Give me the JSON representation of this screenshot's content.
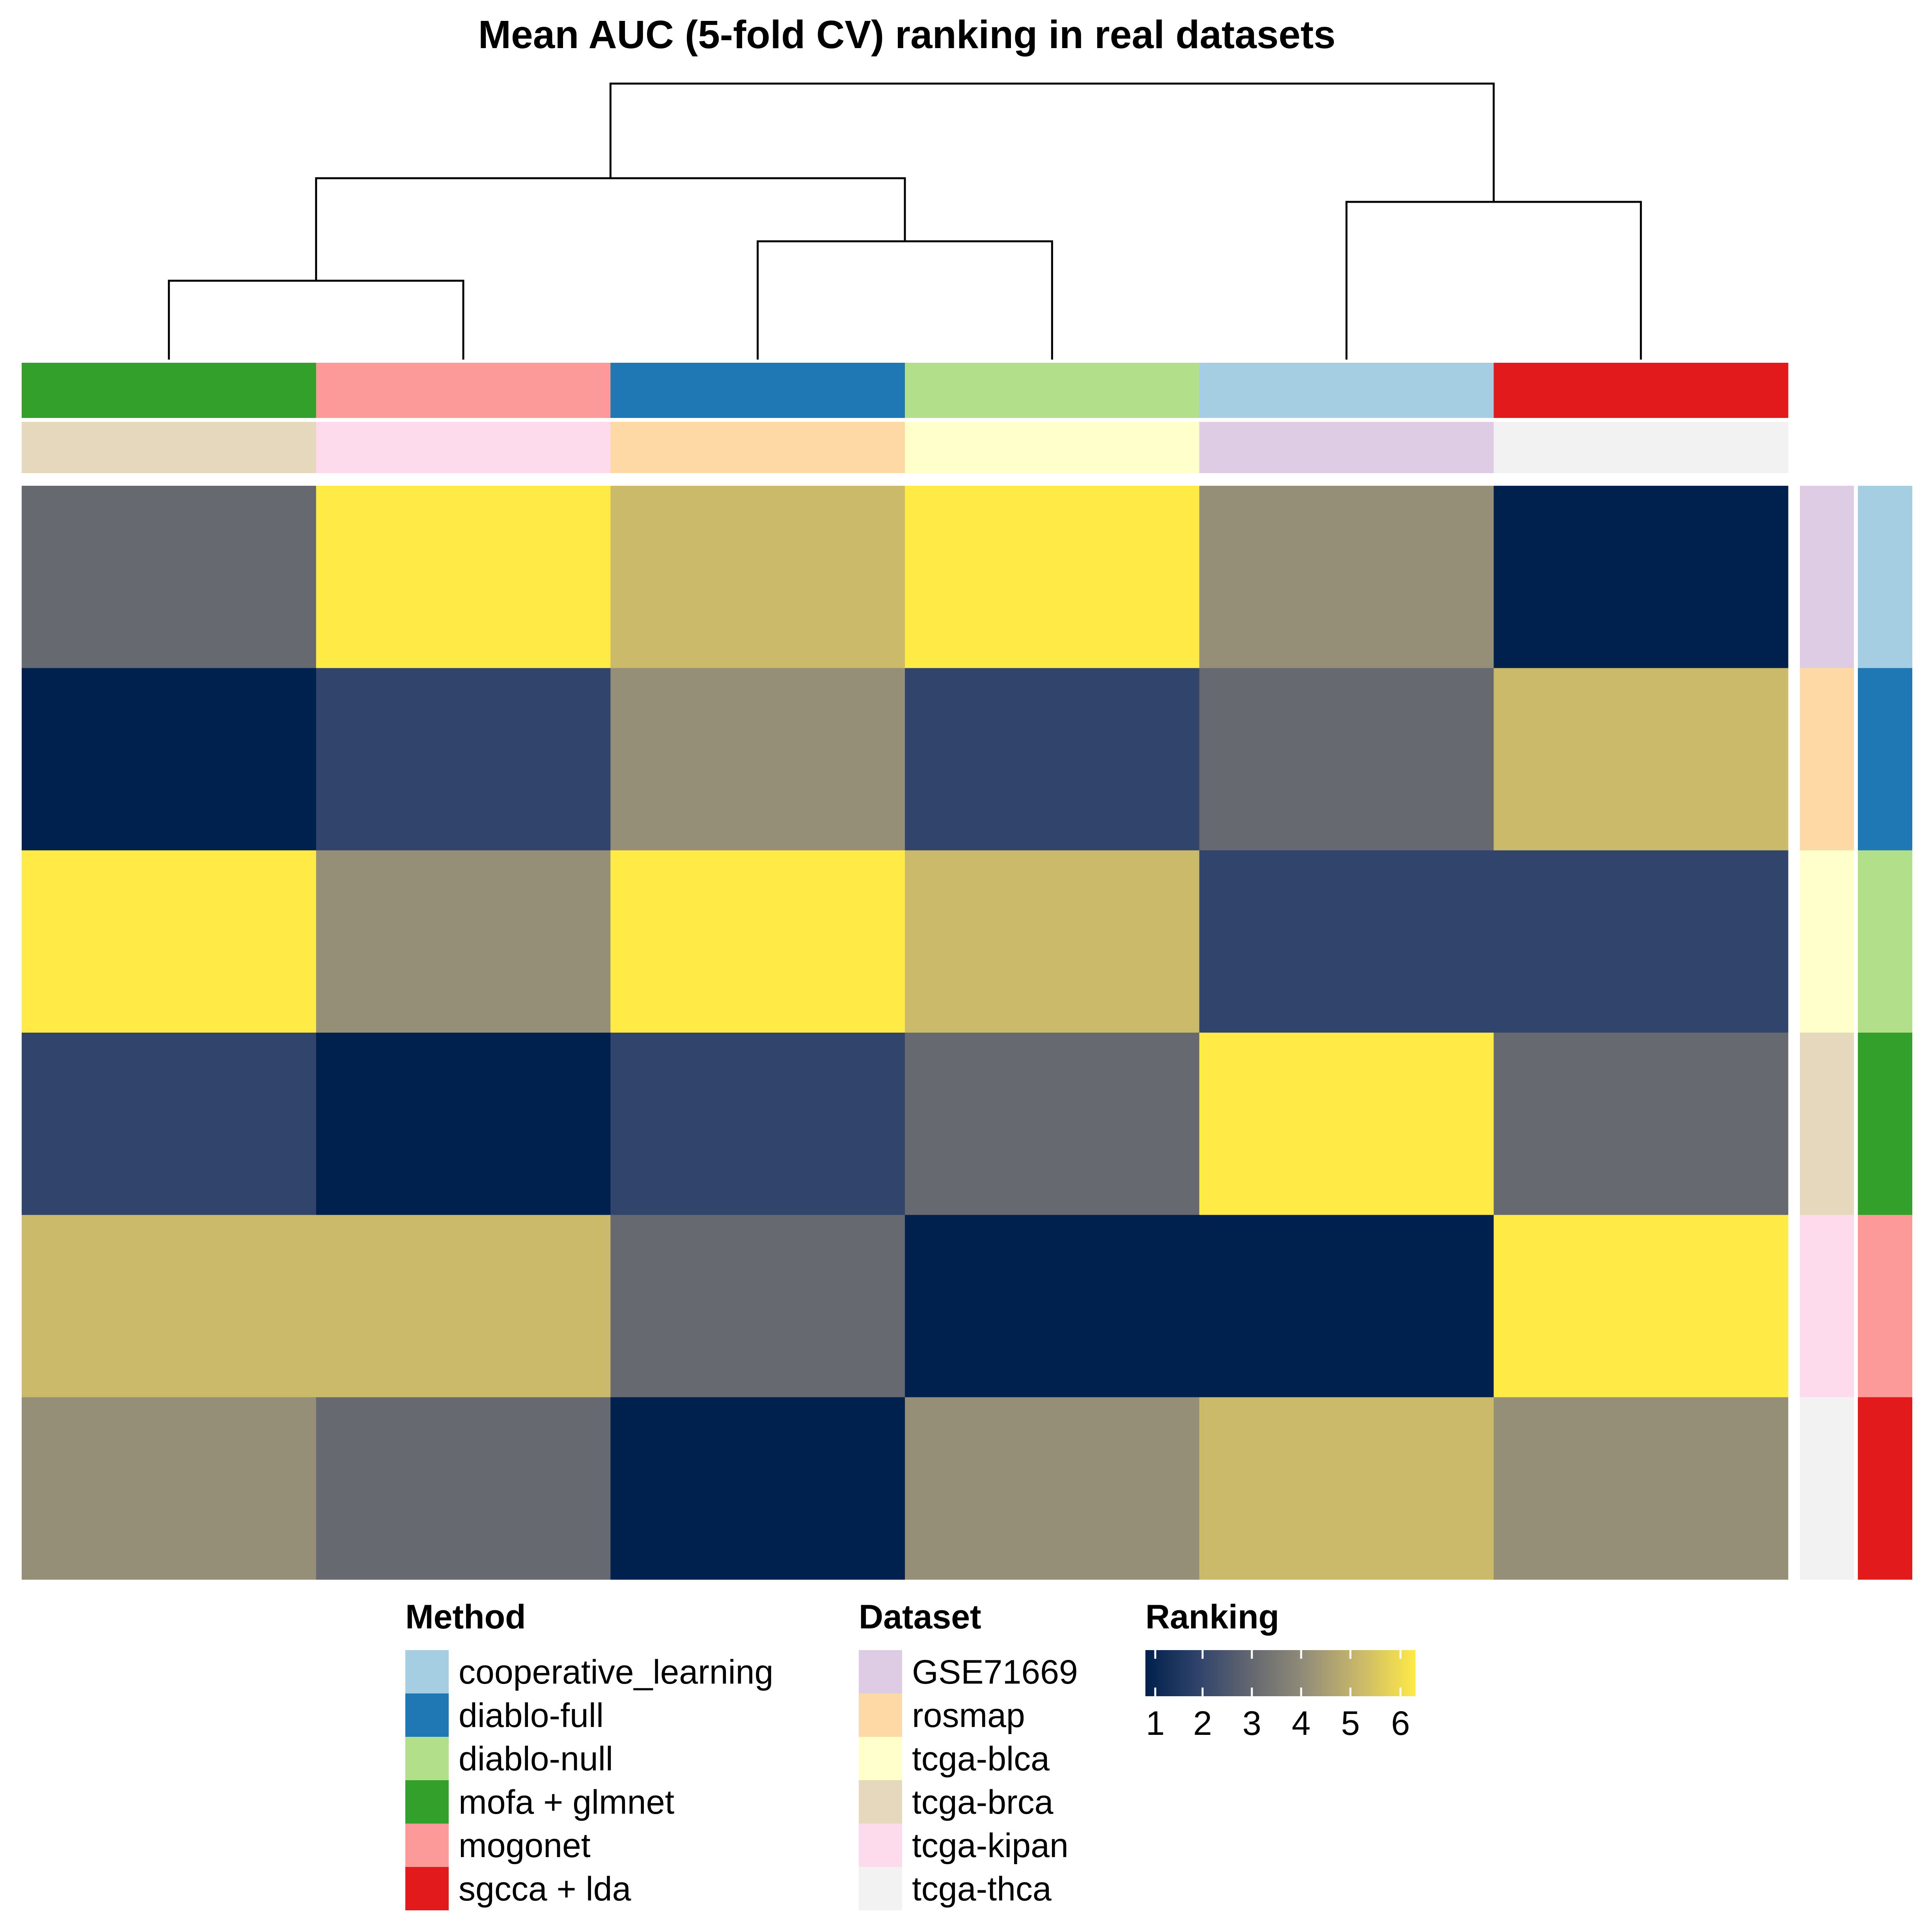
{
  "chart_data": {
    "type": "heatmap",
    "title": "Mean AUC (5-fold CV) ranking in real datasets",
    "columns": [
      {
        "dataset": "tcga-brca",
        "method": "mofa + glmnet"
      },
      {
        "dataset": "tcga-kipan",
        "method": "mogonet"
      },
      {
        "dataset": "rosmap",
        "method": "diablo-full"
      },
      {
        "dataset": "tcga-blca",
        "method": "diablo-null"
      },
      {
        "dataset": "GSE71669",
        "method": "cooperative_learning"
      },
      {
        "dataset": "tcga-thca",
        "method": "sgcca + lda"
      }
    ],
    "rows": [
      {
        "dataset": "GSE71669",
        "method": "cooperative_learning"
      },
      {
        "dataset": "rosmap",
        "method": "diablo-full"
      },
      {
        "dataset": "tcga-blca",
        "method": "diablo-null"
      },
      {
        "dataset": "tcga-brca",
        "method": "mofa + glmnet"
      },
      {
        "dataset": "tcga-kipan",
        "method": "mogonet"
      },
      {
        "dataset": "tcga-thca",
        "method": "sgcca + lda"
      }
    ],
    "values": [
      [
        3,
        6,
        5,
        6,
        4,
        1
      ],
      [
        1,
        2,
        4,
        2,
        3,
        5
      ],
      [
        6,
        4,
        6,
        5,
        2,
        2
      ],
      [
        2,
        1,
        2,
        3,
        6,
        3
      ],
      [
        5,
        5,
        3,
        1,
        1,
        6
      ],
      [
        4,
        3,
        1,
        4,
        5,
        4
      ]
    ],
    "colorscale": [
      "#00204D",
      "#31446B",
      "#666970",
      "#958F78",
      "#CBBA69",
      "#FFEA46"
    ],
    "dendrogram_links": [
      [
        0,
        1,
        1.0
      ],
      [
        2,
        3,
        1.5
      ],
      [
        6,
        7,
        2.3
      ],
      [
        4,
        5,
        2.0
      ],
      [
        8,
        9,
        3.5
      ]
    ],
    "legends": {
      "method": {
        "title": "Method",
        "items": [
          {
            "label": "cooperative_learning",
            "color": "#A6CEE3"
          },
          {
            "label": "diablo-full",
            "color": "#1F78B4"
          },
          {
            "label": "diablo-null",
            "color": "#B2DF8A"
          },
          {
            "label": "mofa + glmnet",
            "color": "#33A02C"
          },
          {
            "label": "mogonet",
            "color": "#FB9A99"
          },
          {
            "label": "sgcca + lda",
            "color": "#E31A1C"
          }
        ]
      },
      "dataset": {
        "title": "Dataset",
        "items": [
          {
            "label": "GSE71669",
            "color": "#DECBE4"
          },
          {
            "label": "rosmap",
            "color": "#FED9A6"
          },
          {
            "label": "tcga-blca",
            "color": "#FFFFCC"
          },
          {
            "label": "tcga-brca",
            "color": "#E5D8BD"
          },
          {
            "label": "tcga-kipan",
            "color": "#FDDAEC"
          },
          {
            "label": "tcga-thca",
            "color": "#F2F2F2"
          }
        ]
      },
      "ranking": {
        "title": "Ranking",
        "ticks": [
          "1",
          "2",
          "3",
          "4",
          "5",
          "6"
        ]
      }
    }
  }
}
